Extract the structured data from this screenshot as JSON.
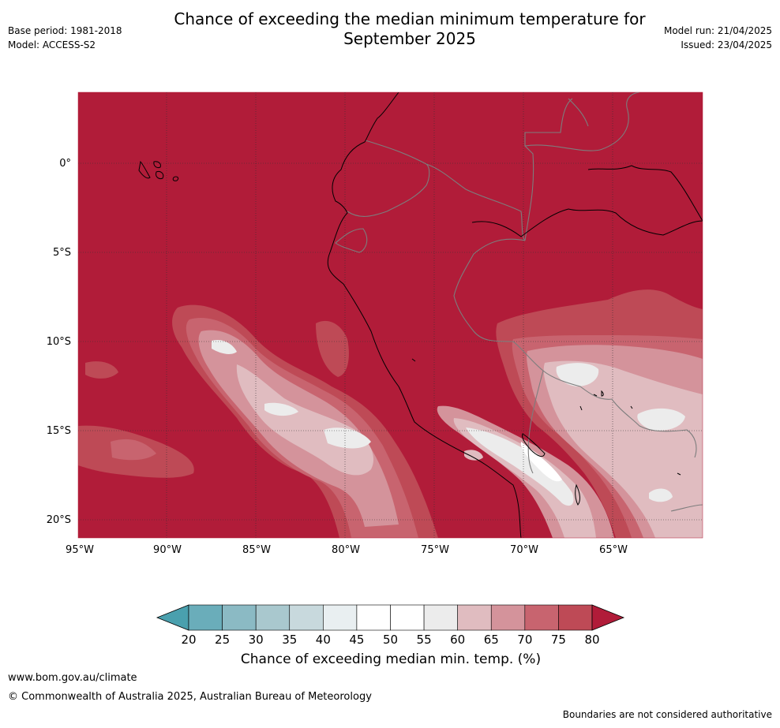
{
  "header": {
    "title_line1": "Chance of exceeding the median minimum temperature for",
    "title_line2": "September 2025",
    "base_period": "Base period: 1981-2018",
    "model": "Model: ACCESS-S2",
    "model_run": "Model run: 21/04/2025",
    "issued": "Issued: 23/04/2025"
  },
  "map": {
    "lat_labels": [
      "0°",
      "5°S",
      "10°S",
      "15°S",
      "20°S"
    ],
    "lon_labels": [
      "95°W",
      "90°W",
      "85°W",
      "80°W",
      "75°W",
      "70°W",
      "65°W"
    ]
  },
  "colorbar": {
    "ticks": [
      "20",
      "25",
      "30",
      "35",
      "40",
      "45",
      "50",
      "55",
      "60",
      "65",
      "70",
      "75",
      "80"
    ],
    "colors": [
      "#4aa0ae",
      "#6aadba",
      "#8bbac4",
      "#a9c8ce",
      "#c8d9dd",
      "#e9eff1",
      "#ffffff",
      "#ffffff",
      "#ececec",
      "#e0bcc0",
      "#d4939b",
      "#c8646f",
      "#be4a56",
      "#b11c39"
    ],
    "label": "Chance of exceeding median min. temp. (%)"
  },
  "footer": {
    "url": "www.bom.gov.au/climate",
    "copyright": "© Commonwealth of Australia 2025, Australian Bureau of Meteorology",
    "note": "Boundaries are not considered authoritative"
  }
}
